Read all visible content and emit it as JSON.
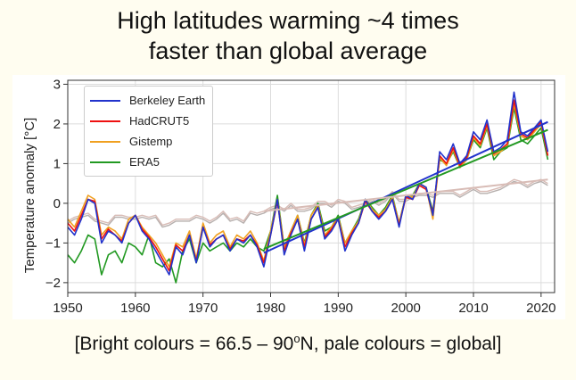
{
  "title_line1": "High latitudes warming ~4 times",
  "title_line2": "faster than global average",
  "caption": {
    "pre": "[Bright colours = 66.5 – 90",
    "sup": "o",
    "post": "N, pale colours = global]"
  },
  "chart_data": {
    "type": "line",
    "ylabel": "Temperature anomaly [°C]",
    "xlabel": "",
    "xlim": [
      1950,
      2022
    ],
    "ylim": [
      -2.25,
      3.1
    ],
    "xticks": [
      1950,
      1960,
      1970,
      1980,
      1990,
      2000,
      2010,
      2020
    ],
    "yticks": [
      -2,
      -1,
      0,
      1,
      2,
      3
    ],
    "grid": true,
    "legend_position": "top-left",
    "x": [
      1950,
      1951,
      1952,
      1953,
      1954,
      1955,
      1956,
      1957,
      1958,
      1959,
      1960,
      1961,
      1962,
      1963,
      1964,
      1965,
      1966,
      1967,
      1968,
      1969,
      1970,
      1971,
      1972,
      1973,
      1974,
      1975,
      1976,
      1977,
      1978,
      1979,
      1980,
      1981,
      1982,
      1983,
      1984,
      1985,
      1986,
      1987,
      1988,
      1989,
      1990,
      1991,
      1992,
      1993,
      1994,
      1995,
      1996,
      1997,
      1998,
      1999,
      2000,
      2001,
      2002,
      2003,
      2004,
      2005,
      2006,
      2007,
      2008,
      2009,
      2010,
      2011,
      2012,
      2013,
      2014,
      2015,
      2016,
      2017,
      2018,
      2019,
      2020,
      2021
    ],
    "series": [
      {
        "name": "Berkeley Earth",
        "color": "#2233cc",
        "values": [
          -0.6,
          -0.8,
          -0.4,
          0.1,
          0.0,
          -1.0,
          -0.7,
          -0.8,
          -1.0,
          -0.5,
          -0.3,
          -0.7,
          -0.9,
          -1.2,
          -1.5,
          -1.8,
          -1.1,
          -1.3,
          -0.8,
          -1.5,
          -0.6,
          -1.1,
          -0.9,
          -0.8,
          -1.2,
          -0.9,
          -1.0,
          -0.8,
          -1.1,
          -1.6,
          -0.8,
          0.1,
          -1.3,
          -0.8,
          -0.4,
          -1.2,
          -0.4,
          -0.1,
          -0.9,
          -0.7,
          -0.4,
          -1.2,
          -0.8,
          -0.5,
          0.1,
          -0.2,
          -0.4,
          -0.2,
          0.1,
          -0.6,
          0.2,
          0.1,
          0.5,
          0.4,
          -0.3,
          1.3,
          1.1,
          1.5,
          1.0,
          1.2,
          1.8,
          1.6,
          2.1,
          1.3,
          1.4,
          1.6,
          2.8,
          1.8,
          1.7,
          1.9,
          2.1,
          1.3
        ]
      },
      {
        "name": "HadCRUT5",
        "color": "#ee1111",
        "values": [
          -0.5,
          -0.7,
          -0.3,
          0.1,
          0.05,
          -0.9,
          -0.65,
          -0.8,
          -0.95,
          -0.5,
          -0.3,
          -0.65,
          -0.85,
          -1.1,
          -1.4,
          -1.7,
          -1.05,
          -1.2,
          -0.8,
          -1.45,
          -0.6,
          -1.05,
          -0.9,
          -0.8,
          -1.15,
          -0.9,
          -0.95,
          -0.8,
          -1.05,
          -1.5,
          -0.8,
          0.05,
          -1.2,
          -0.75,
          -0.4,
          -1.1,
          -0.4,
          -0.1,
          -0.85,
          -0.65,
          -0.4,
          -1.1,
          -0.75,
          -0.5,
          0.05,
          -0.2,
          -0.35,
          -0.2,
          0.1,
          -0.55,
          0.15,
          0.1,
          0.45,
          0.35,
          -0.25,
          1.2,
          1.0,
          1.4,
          0.95,
          1.15,
          1.7,
          1.5,
          2.0,
          1.25,
          1.35,
          1.5,
          2.6,
          1.75,
          1.65,
          1.85,
          2.05,
          1.2
        ]
      },
      {
        "name": "Gistemp",
        "color": "#f0a020",
        "values": [
          -0.4,
          -0.6,
          -0.2,
          0.2,
          0.1,
          -0.8,
          -0.6,
          -0.7,
          -0.9,
          -0.4,
          -0.3,
          -0.6,
          -0.8,
          -1.0,
          -1.3,
          -1.6,
          -1.0,
          -1.1,
          -0.7,
          -1.4,
          -0.5,
          -1.0,
          -0.8,
          -0.7,
          -1.1,
          -0.8,
          -0.9,
          -0.7,
          -1.0,
          -1.45,
          -0.7,
          0.1,
          -1.1,
          -0.7,
          -0.3,
          -1.05,
          -0.3,
          -0.05,
          -0.8,
          -0.6,
          -0.35,
          -1.0,
          -0.7,
          -0.45,
          0.1,
          -0.15,
          -0.3,
          -0.15,
          0.15,
          -0.5,
          0.2,
          0.15,
          0.5,
          0.4,
          -0.4,
          1.15,
          0.95,
          1.35,
          0.9,
          1.1,
          1.65,
          1.45,
          1.95,
          1.2,
          1.3,
          1.45,
          2.5,
          1.7,
          1.6,
          1.8,
          2.0,
          1.2
        ]
      },
      {
        "name": "ERA5",
        "color": "#229922",
        "values": [
          -1.3,
          -1.5,
          -1.2,
          -0.8,
          -0.9,
          -1.8,
          -1.3,
          -1.2,
          -1.5,
          -1.0,
          -1.1,
          -1.3,
          -0.8,
          -1.5,
          -1.6,
          -1.4,
          -2.0,
          -1.2,
          -0.9,
          -1.5,
          -1.0,
          -1.2,
          -1.1,
          -1.0,
          -1.2,
          -1.0,
          -1.1,
          -0.9,
          -1.1,
          -1.2,
          -0.7,
          0.2,
          -1.1,
          -0.7,
          -0.3,
          -1.0,
          -0.3,
          0.0,
          -0.7,
          -0.6,
          -0.3,
          -1.0,
          -0.7,
          -0.4,
          0.1,
          -0.1,
          -0.3,
          -0.1,
          0.2,
          -0.5,
          0.2,
          0.2,
          0.5,
          0.4,
          -0.2,
          1.1,
          1.0,
          1.3,
          0.9,
          1.1,
          1.6,
          1.4,
          1.9,
          1.1,
          1.3,
          1.4,
          2.4,
          1.6,
          1.5,
          1.7,
          1.9,
          1.1
        ]
      },
      {
        "name": "",
        "color": "#d8bcb6",
        "values": [
          -0.45,
          -0.35,
          -0.3,
          -0.25,
          -0.4,
          -0.45,
          -0.5,
          -0.3,
          -0.3,
          -0.35,
          -0.35,
          -0.3,
          -0.35,
          -0.3,
          -0.55,
          -0.5,
          -0.4,
          -0.4,
          -0.4,
          -0.3,
          -0.35,
          -0.45,
          -0.35,
          -0.2,
          -0.4,
          -0.35,
          -0.45,
          -0.2,
          -0.25,
          -0.2,
          -0.1,
          -0.05,
          -0.15,
          0.0,
          -0.15,
          -0.15,
          -0.1,
          0.05,
          0.05,
          -0.05,
          0.1,
          0.05,
          -0.1,
          -0.05,
          0.0,
          0.1,
          0.0,
          0.1,
          0.3,
          0.1,
          0.1,
          0.2,
          0.25,
          0.25,
          0.2,
          0.3,
          0.3,
          0.3,
          0.2,
          0.3,
          0.4,
          0.3,
          0.3,
          0.35,
          0.4,
          0.5,
          0.6,
          0.55,
          0.45,
          0.55,
          0.6,
          0.5
        ]
      },
      {
        "name": "",
        "color": "#b7b0ae",
        "values": [
          -0.5,
          -0.4,
          -0.35,
          -0.3,
          -0.45,
          -0.5,
          -0.55,
          -0.35,
          -0.35,
          -0.4,
          -0.4,
          -0.35,
          -0.4,
          -0.35,
          -0.6,
          -0.55,
          -0.45,
          -0.45,
          -0.45,
          -0.35,
          -0.4,
          -0.5,
          -0.4,
          -0.25,
          -0.45,
          -0.4,
          -0.5,
          -0.25,
          -0.3,
          -0.25,
          -0.15,
          -0.1,
          -0.2,
          -0.05,
          -0.2,
          -0.2,
          -0.15,
          0.0,
          0.0,
          -0.1,
          0.05,
          0.0,
          -0.15,
          -0.1,
          -0.05,
          0.05,
          -0.05,
          0.05,
          0.25,
          0.05,
          0.05,
          0.15,
          0.2,
          0.2,
          0.15,
          0.25,
          0.25,
          0.25,
          0.15,
          0.25,
          0.35,
          0.25,
          0.25,
          0.3,
          0.35,
          0.45,
          0.55,
          0.5,
          0.4,
          0.5,
          0.55,
          0.45
        ]
      }
    ],
    "trends": [
      {
        "color": "#2233cc",
        "x": [
          1979,
          2021
        ],
        "y": [
          -1.25,
          2.05
        ]
      },
      {
        "color": "#229922",
        "x": [
          1979,
          2021
        ],
        "y": [
          -1.15,
          1.85
        ]
      },
      {
        "color": "#d8bcb6",
        "x": [
          1979,
          2021
        ],
        "y": [
          -0.2,
          0.6
        ]
      }
    ]
  }
}
